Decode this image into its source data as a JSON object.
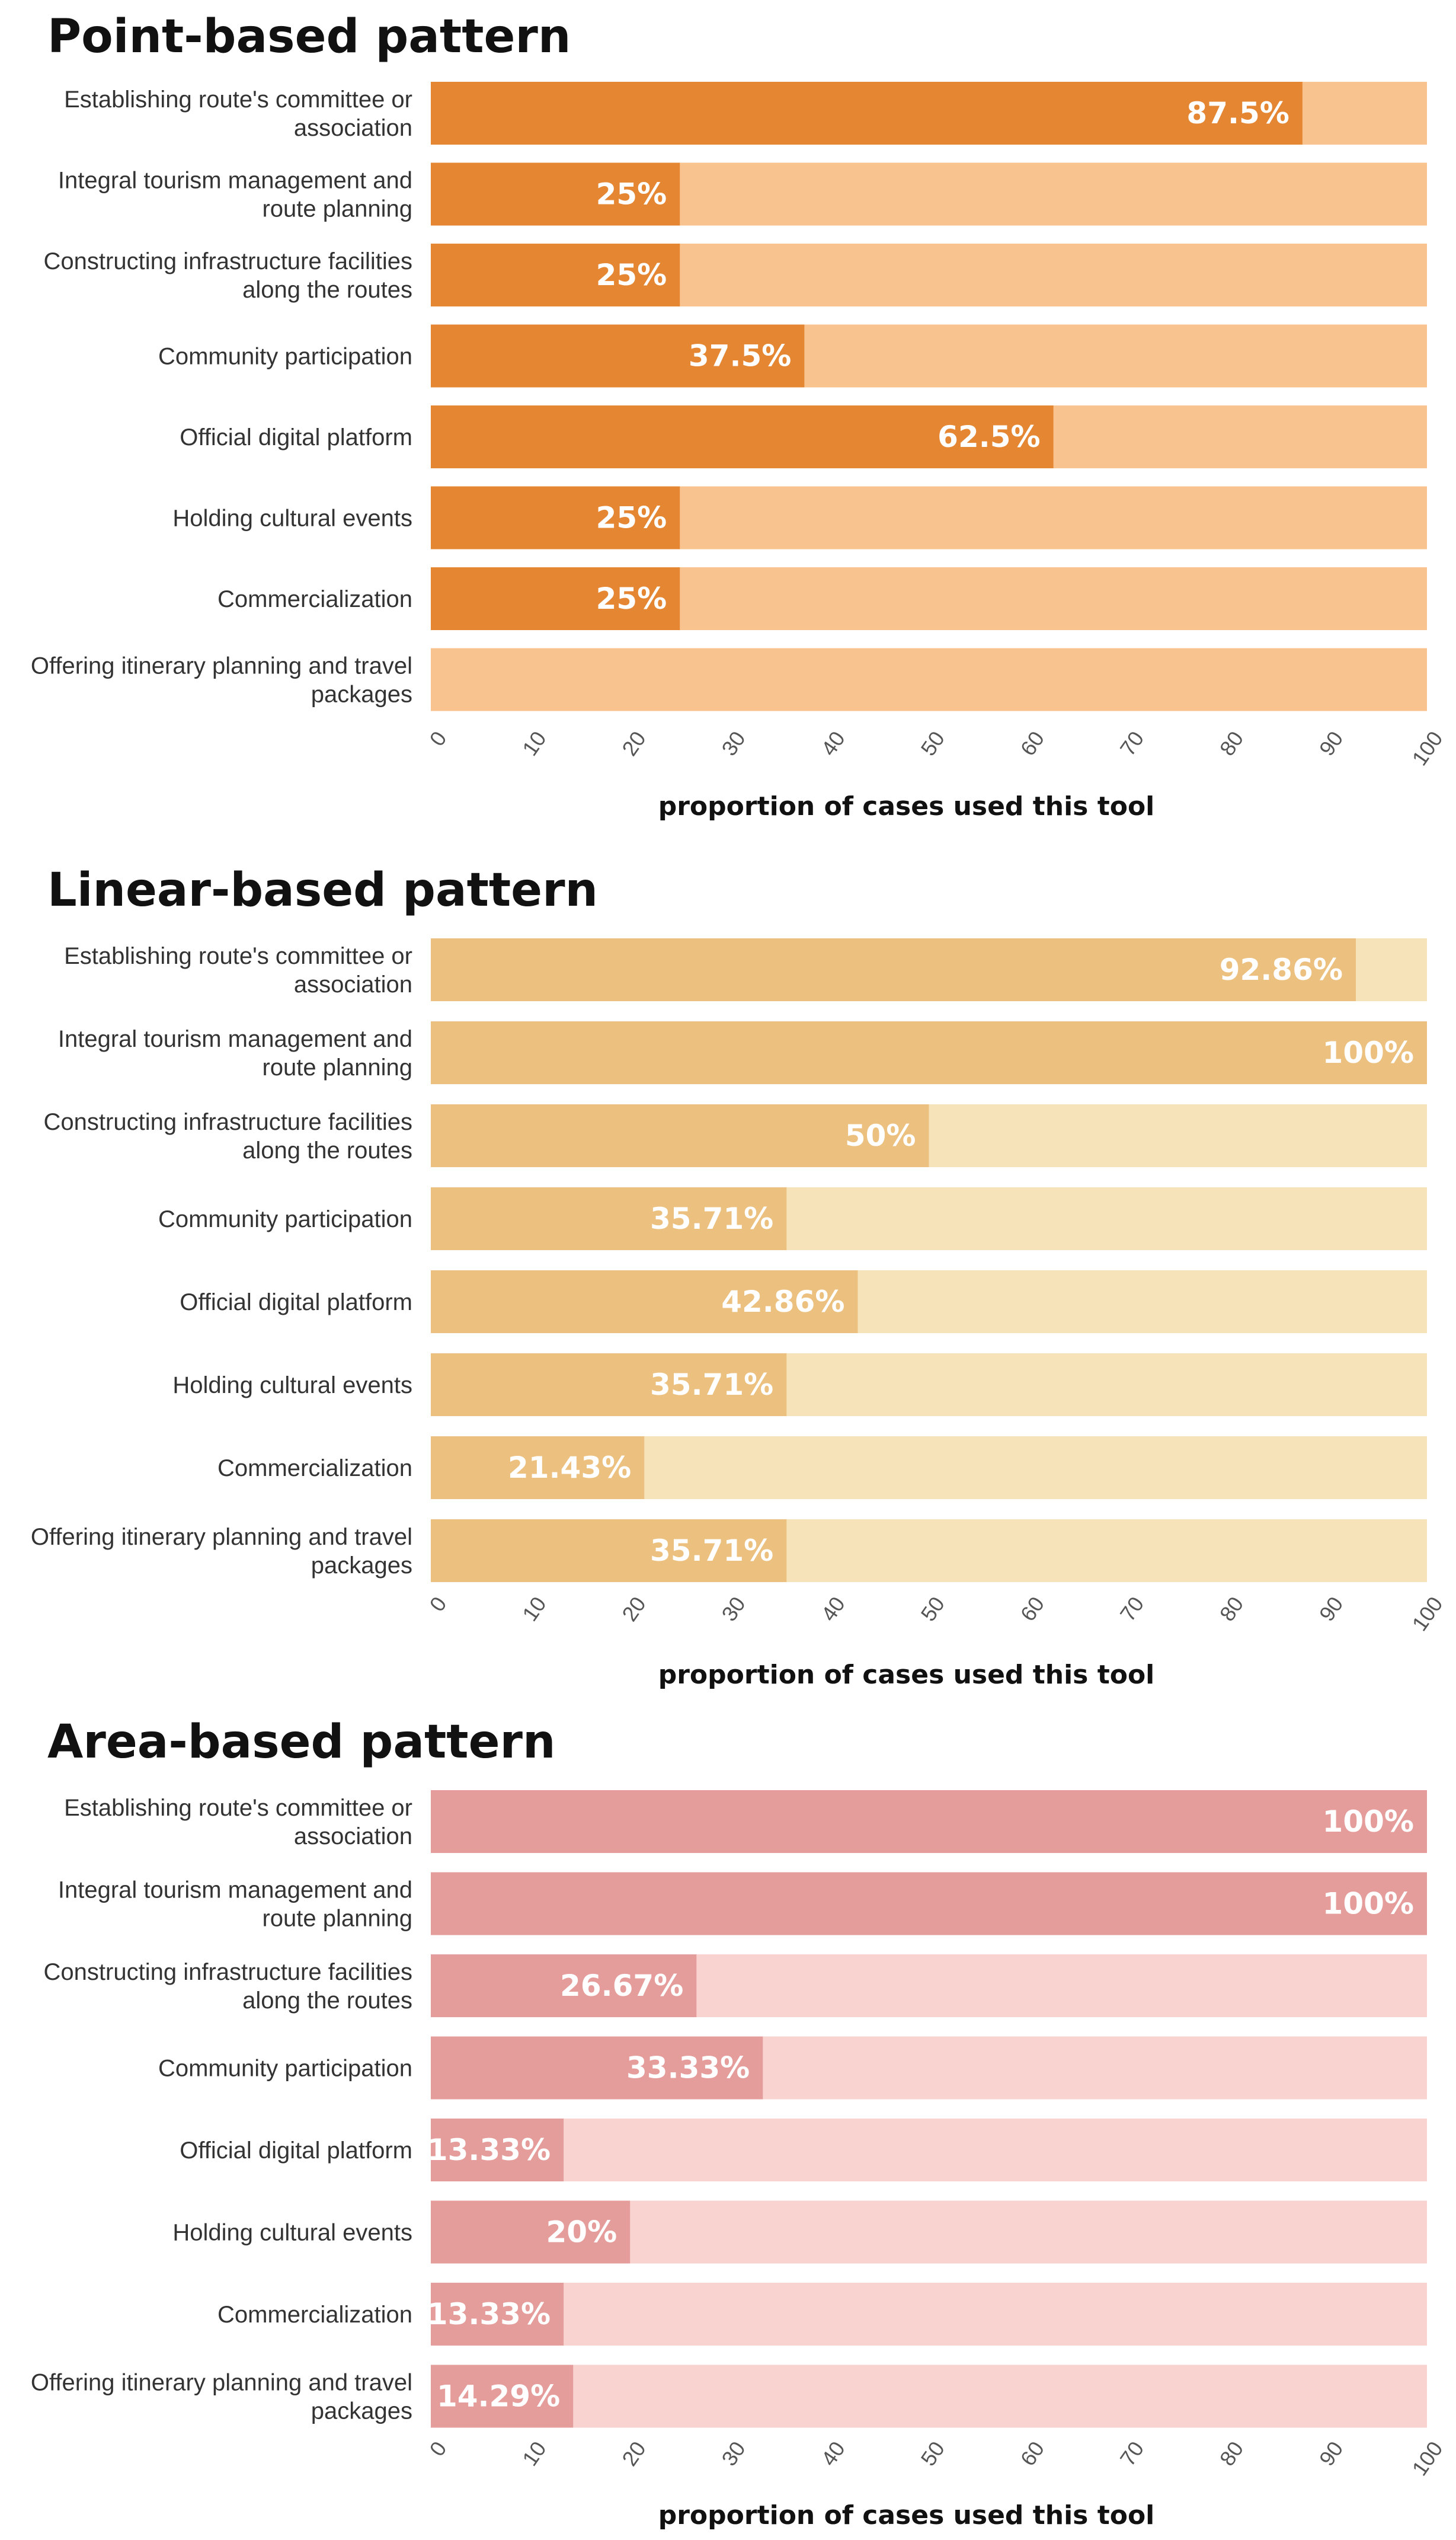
{
  "chart_data": [
    {
      "type": "bar",
      "orientation": "horizontal",
      "stacked_with_background": true,
      "title": "Point-based pattern",
      "xlabel": "proportion of cases used this tool",
      "xlim": [
        0,
        100
      ],
      "xticks": [
        0,
        10,
        20,
        30,
        40,
        50,
        60,
        70,
        80,
        90,
        100
      ],
      "categories": [
        [
          "Establishing route's committee or",
          "association"
        ],
        [
          "Integral tourism management and",
          "route planning"
        ],
        [
          "Constructing infrastructure facilities",
          "along the routes"
        ],
        [
          "Community participation"
        ],
        [
          "Official digital platform"
        ],
        [
          "Holding cultural events"
        ],
        [
          "Commercialization"
        ],
        [
          "Offering itinerary planning and travel",
          "packages"
        ]
      ],
      "values": [
        87.5,
        25,
        25,
        37.5,
        62.5,
        25,
        25,
        0
      ],
      "value_labels": [
        "87.5%",
        "25%",
        "25%",
        "37.5%",
        "62.5%",
        "25%",
        "25%",
        ""
      ],
      "colors": {
        "bar": "#E58633",
        "background": "#F8C38F"
      }
    },
    {
      "type": "bar",
      "orientation": "horizontal",
      "stacked_with_background": true,
      "title": "Linear-based pattern",
      "xlabel": "proportion of cases used this tool",
      "xlim": [
        0,
        100
      ],
      "xticks": [
        0,
        10,
        20,
        30,
        40,
        50,
        60,
        70,
        80,
        90,
        100
      ],
      "categories": [
        [
          "Establishing route's committee or",
          "association"
        ],
        [
          "Integral tourism management and",
          "route planning"
        ],
        [
          "Constructing infrastructure facilities",
          "along the routes"
        ],
        [
          "Community participation"
        ],
        [
          "Official digital platform"
        ],
        [
          "Holding cultural events"
        ],
        [
          "Commercialization"
        ],
        [
          "Offering itinerary planning and travel",
          "packages"
        ]
      ],
      "values": [
        92.86,
        100,
        50,
        35.71,
        42.86,
        35.71,
        21.43,
        35.71
      ],
      "value_labels": [
        "92.86%",
        "100%",
        "50%",
        "35.71%",
        "42.86%",
        "35.71%",
        "21.43%",
        "35.71%"
      ],
      "colors": {
        "bar": "#ECC07E",
        "background": "#F6E3BA"
      }
    },
    {
      "type": "bar",
      "orientation": "horizontal",
      "stacked_with_background": true,
      "title": "Area-based pattern",
      "xlabel": "proportion of cases used this tool",
      "xlim": [
        0,
        100
      ],
      "xticks": [
        0,
        10,
        20,
        30,
        40,
        50,
        60,
        70,
        80,
        90,
        100
      ],
      "categories": [
        [
          "Establishing route's committee or",
          "association"
        ],
        [
          "Integral tourism management and",
          "route planning"
        ],
        [
          "Constructing infrastructure facilities",
          "along the routes"
        ],
        [
          "Community participation"
        ],
        [
          "Official digital platform"
        ],
        [
          "Holding cultural events"
        ],
        [
          "Commercialization"
        ],
        [
          "Offering itinerary planning and travel",
          "packages"
        ]
      ],
      "values": [
        100,
        100,
        26.67,
        33.33,
        13.33,
        20,
        13.33,
        14.29
      ],
      "value_labels": [
        "100%",
        "100%",
        "26.67%",
        "33.33%",
        "13.33%",
        "20%",
        "13.33%",
        "14.29%"
      ],
      "colors": {
        "bar": "#E59D9B",
        "background": "#F8D3CF"
      }
    }
  ]
}
